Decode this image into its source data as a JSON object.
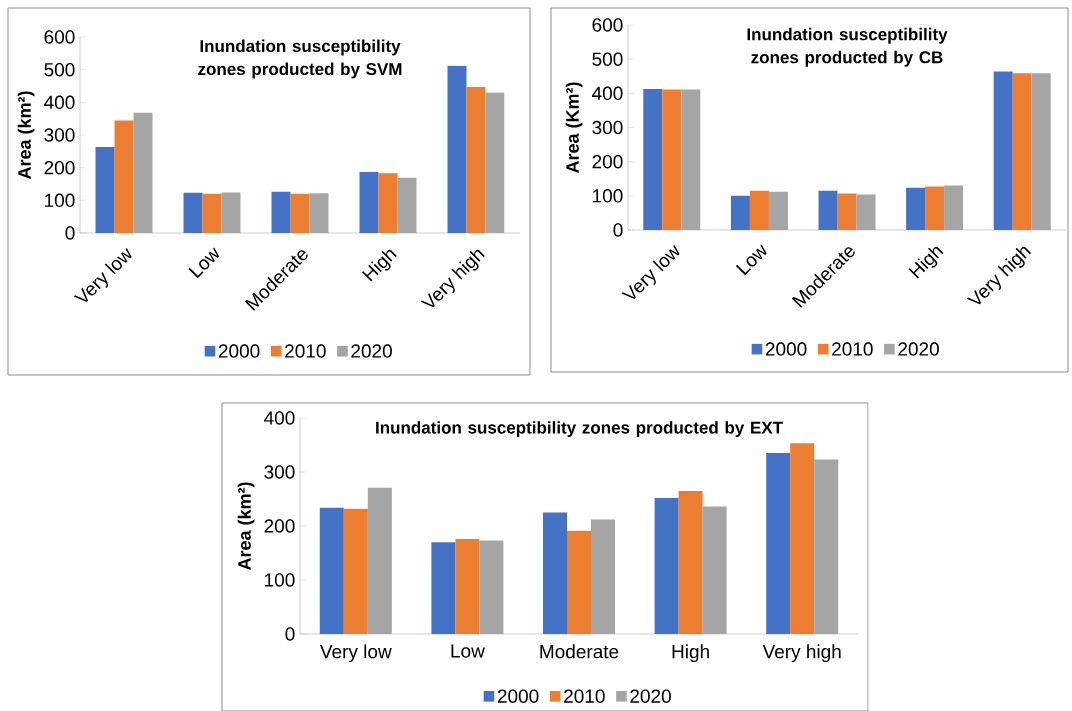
{
  "chart_data": [
    {
      "type": "bar",
      "title": "Inundation susceptibility zones producted by SVM",
      "ylabel": "Area (km²)",
      "categories": [
        "Very low",
        "Low",
        "Moderate",
        "High",
        "Very high"
      ],
      "ylim": [
        0,
        600
      ],
      "yticks": [
        0,
        100,
        200,
        300,
        400,
        500,
        600
      ],
      "legend": "bottom",
      "grid": false,
      "series": [
        {
          "name": "2000",
          "color": "#4472c4",
          "values": [
            263,
            123,
            126,
            187,
            512
          ]
        },
        {
          "name": "2010",
          "color": "#ed7d31",
          "values": [
            344,
            120,
            120,
            183,
            447
          ]
        },
        {
          "name": "2020",
          "color": "#a5a5a5",
          "values": [
            368,
            124,
            122,
            169,
            430
          ]
        }
      ]
    },
    {
      "type": "bar",
      "title": "Inundation susceptibility zones producted by CB",
      "ylabel": "Area (Km²)",
      "categories": [
        "Very low",
        "Low",
        "Moderate",
        "High",
        "Very high"
      ],
      "ylim": [
        0,
        600
      ],
      "yticks": [
        0,
        100,
        200,
        300,
        400,
        500,
        600
      ],
      "legend": "bottom",
      "grid": false,
      "series": [
        {
          "name": "2000",
          "color": "#4472c4",
          "values": [
            413,
            100,
            115,
            124,
            464
          ]
        },
        {
          "name": "2010",
          "color": "#ed7d31",
          "values": [
            411,
            115,
            107,
            127,
            459
          ]
        },
        {
          "name": "2020",
          "color": "#a5a5a5",
          "values": [
            411,
            112,
            104,
            130,
            459
          ]
        }
      ]
    },
    {
      "type": "bar",
      "title": "Inundation susceptibility zones producted by EXT",
      "ylabel": "Area (km²)",
      "categories": [
        "Very low",
        "Low",
        "Moderate",
        "High",
        "Very high"
      ],
      "ylim": [
        0,
        400
      ],
      "yticks": [
        0,
        100,
        200,
        300,
        400
      ],
      "legend": "bottom",
      "grid": false,
      "series": [
        {
          "name": "2000",
          "color": "#4472c4",
          "values": [
            234,
            170,
            225,
            252,
            335
          ]
        },
        {
          "name": "2010",
          "color": "#ed7d31",
          "values": [
            232,
            176,
            191,
            265,
            353
          ]
        },
        {
          "name": "2020",
          "color": "#a5a5a5",
          "values": [
            271,
            173,
            212,
            236,
            323
          ]
        }
      ]
    }
  ]
}
